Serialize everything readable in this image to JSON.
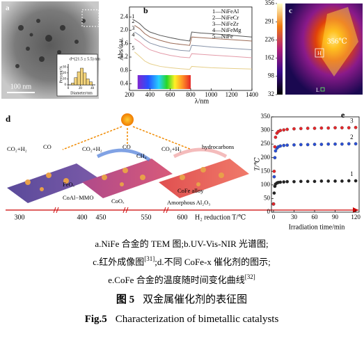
{
  "panel_a": {
    "label": "a",
    "scale_bar": "100 nm",
    "inset": {
      "type": "histogram",
      "annotation": "d=(21.5 ± 5.5) nm",
      "xlabel": "Diameter/nm",
      "ylabel": "Percent/%",
      "bins": [
        5,
        10,
        15,
        20,
        25,
        30,
        35,
        40
      ],
      "values": [
        3,
        12,
        22,
        28,
        20,
        10,
        5
      ],
      "color": "#f2d27a",
      "xlim": [
        0,
        45
      ],
      "ylim": [
        0,
        35
      ],
      "xticks": [
        0,
        20,
        40
      ],
      "yticks": [
        0,
        10,
        20,
        30
      ]
    }
  },
  "panel_b": {
    "type": "line",
    "label": "b",
    "xlabel": "λ/nm",
    "ylabel": "Abs/a.u.",
    "x": [
      250,
      300,
      350,
      400,
      500,
      600,
      700,
      790,
      810,
      900,
      1000,
      1200,
      1400
    ],
    "xlim": [
      200,
      1400
    ],
    "ylim": [
      0.2,
      2.7
    ],
    "xticks": [
      200,
      400,
      600,
      800,
      1000,
      1200,
      1400
    ],
    "yticks": [
      0.4,
      0.8,
      1.2,
      1.6,
      {
        "value": 2.0,
        "label": "2.0"
      },
      2.4
    ],
    "series": [
      {
        "name": "1—NiFeAl",
        "tag": "1",
        "color": "#555555",
        "values": [
          2.3,
          2.2,
          2.05,
          1.95,
          1.85,
          1.78,
          1.72,
          1.68,
          1.95,
          1.92,
          1.9,
          1.85,
          1.8
        ]
      },
      {
        "name": "2—NiFeCr",
        "tag": "2",
        "color": "#9b6a55",
        "values": [
          2.15,
          2.05,
          1.9,
          1.8,
          1.7,
          1.62,
          1.58,
          1.55,
          1.8,
          1.78,
          1.76,
          1.72,
          1.68
        ]
      },
      {
        "name": "3—NiFeZr",
        "tag": "3",
        "color": "#8793a8",
        "values": [
          1.95,
          1.85,
          1.72,
          1.62,
          1.52,
          1.45,
          1.4,
          1.38,
          1.55,
          1.53,
          1.5,
          1.46,
          1.42
        ]
      },
      {
        "name": "4—NiFeMg",
        "tag": "4",
        "color": "#e39aa8",
        "values": [
          1.75,
          1.65,
          1.52,
          1.42,
          1.32,
          1.25,
          1.2,
          1.18,
          1.3,
          1.28,
          1.26,
          1.22,
          1.18
        ]
      },
      {
        "name": "5—NiFe",
        "tag": "5",
        "color": "#e6cf8a",
        "values": [
          1.35,
          1.22,
          1.08,
          1.0,
          0.92,
          0.88,
          0.85,
          0.83,
          0.92,
          0.9,
          0.88,
          0.86,
          0.84
        ]
      }
    ]
  },
  "panel_c": {
    "label": "c",
    "hot_label": "356℃",
    "hot_marker": "H",
    "cold_marker": "L",
    "colorbar_lim": [
      32,
      356
    ],
    "colorbar_ticks": [
      356,
      291,
      226,
      162,
      98,
      32
    ]
  },
  "panel_d": {
    "label": "d",
    "texts": [
      "CO₂+H₂",
      "CO",
      "CO₂+H₂",
      "CO",
      "CH₄",
      "CO₂+H₂",
      "hydrocarbons",
      "FeOₓ",
      "CoAl−MMO",
      "CoOₓ",
      "CoFe alloy",
      "Amorphous Al₂O₃"
    ],
    "axis_labels": [
      300,
      400,
      450,
      550,
      600
    ],
    "axis_title": "H₂ reduction T/℃"
  },
  "panel_e": {
    "type": "scatter",
    "label": "e",
    "xlabel": "Irradiation time/min",
    "ylabel": "T/℃",
    "x": [
      0,
      1,
      2,
      3,
      5,
      7,
      10,
      15,
      20,
      30,
      40,
      50,
      60,
      70,
      80,
      90,
      100,
      110,
      120
    ],
    "xlim": [
      -3,
      125
    ],
    "ylim": [
      0,
      350
    ],
    "xticks": [
      0,
      30,
      60,
      90,
      120
    ],
    "yticks": [
      0,
      50,
      100,
      150,
      200,
      250,
      300,
      350
    ],
    "series": [
      {
        "name": "1",
        "color": "#222222",
        "values": [
          30,
          70,
          95,
          103,
          107,
          109,
          110,
          111,
          112,
          112,
          113,
          113,
          113,
          114,
          114,
          114,
          114,
          115,
          115
        ]
      },
      {
        "name": "2",
        "color": "#2a4fd6",
        "values": [
          30,
          130,
          200,
          225,
          235,
          240,
          243,
          245,
          246,
          247,
          248,
          248,
          249,
          249,
          250,
          250,
          250,
          251,
          251
        ]
      },
      {
        "name": "3",
        "color": "#e8262a",
        "values": [
          30,
          150,
          240,
          275,
          290,
          296,
          300,
          302,
          304,
          306,
          307,
          308,
          308,
          309,
          309,
          310,
          310,
          310,
          311
        ]
      }
    ]
  },
  "caption": {
    "line1": "a.NiFe 合金的 TEM 图;b.UV-Vis-NIR 光谱图;",
    "line2": {
      "text": "c.红外成像图",
      "ref": "[31]",
      "rest": ";d.不同 CoFe-x 催化剂的图示;"
    },
    "line3": {
      "text": "e.CoFe 合金的温度随时间变化曲线",
      "ref": "[32]"
    },
    "title_cn": {
      "label": "图 5",
      "text": "双金属催化剂的表征图"
    },
    "title_en": {
      "label": "Fig.5",
      "text": "Characterization of bimetallic catalysts"
    }
  }
}
